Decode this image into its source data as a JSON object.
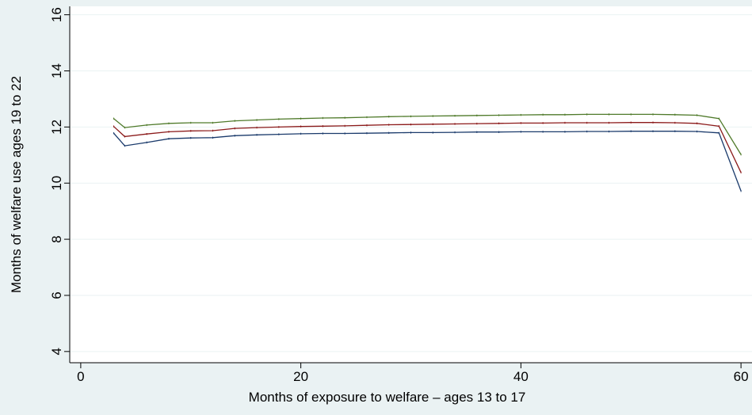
{
  "chart_data": {
    "type": "line",
    "title": "",
    "xlabel": "Months of exposure to welfare – ages 13 to 17",
    "ylabel": "Months of welfare use ages 19 to 22",
    "xlim": [
      -1,
      61
    ],
    "ylim": [
      3.6,
      16.3
    ],
    "xticks": [
      0,
      20,
      40,
      60
    ],
    "yticks": [
      4,
      6,
      8,
      10,
      12,
      14,
      16
    ],
    "grid": true,
    "x": [
      3,
      4,
      6,
      8,
      10,
      12,
      14,
      16,
      18,
      20,
      22,
      24,
      26,
      28,
      30,
      32,
      34,
      36,
      38,
      40,
      42,
      44,
      46,
      48,
      50,
      52,
      54,
      56,
      58,
      60
    ],
    "series": [
      {
        "color": "#4f7a2a",
        "values": [
          12.3,
          11.98,
          12.07,
          12.13,
          12.15,
          12.15,
          12.22,
          12.25,
          12.28,
          12.3,
          12.32,
          12.33,
          12.35,
          12.37,
          12.38,
          12.39,
          12.4,
          12.41,
          12.42,
          12.43,
          12.44,
          12.44,
          12.45,
          12.45,
          12.45,
          12.45,
          12.44,
          12.42,
          12.3,
          11.02
        ]
      },
      {
        "color": "#8b1a1a",
        "values": [
          12.02,
          11.66,
          11.75,
          11.83,
          11.86,
          11.87,
          11.95,
          11.98,
          12.0,
          12.02,
          12.03,
          12.04,
          12.06,
          12.08,
          12.09,
          12.1,
          12.11,
          12.12,
          12.13,
          12.14,
          12.14,
          12.15,
          12.15,
          12.15,
          12.16,
          12.16,
          12.15,
          12.13,
          12.03,
          10.38
        ]
      },
      {
        "color": "#1a3a6b",
        "values": [
          11.78,
          11.33,
          11.45,
          11.58,
          11.61,
          11.62,
          11.69,
          11.72,
          11.74,
          11.76,
          11.77,
          11.77,
          11.78,
          11.79,
          11.8,
          11.8,
          11.81,
          11.82,
          11.82,
          11.83,
          11.83,
          11.83,
          11.84,
          11.84,
          11.85,
          11.85,
          11.85,
          11.84,
          11.79,
          9.72
        ]
      }
    ]
  }
}
